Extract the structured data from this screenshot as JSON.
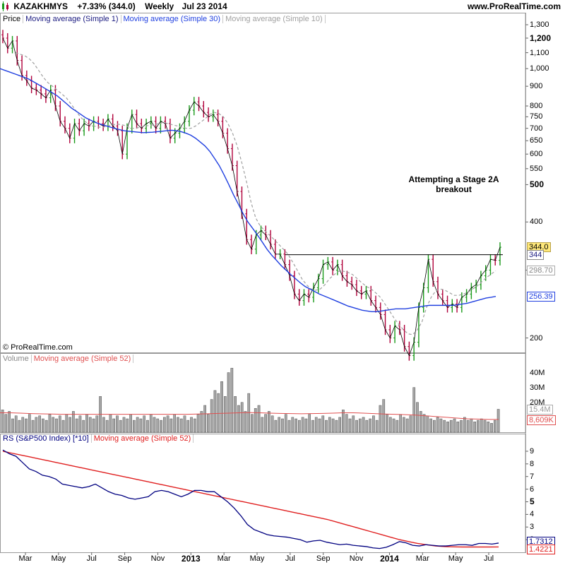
{
  "header": {
    "icon": "candlestick-icon",
    "symbol": "KAZAKHMYS",
    "change": "+7.33% (344.0)",
    "interval": "Weekly",
    "date": "Jul 23 2014",
    "site": "www.ProRealTime.com"
  },
  "colors": {
    "up": "#1a9a1a",
    "down": "#b0003a",
    "ma1": "#000000",
    "ma30": "#2040e0",
    "ma10": "#a0a0a0",
    "resistance": "#000000",
    "rs": "#000080",
    "rs_ma": "#e02020",
    "volume_bar": "#a6a6a6",
    "volume_ma": "#e05050",
    "price_tag": "#ffe87a"
  },
  "price_panel": {
    "legend": [
      "Price",
      "Moving average (Simple 1)",
      "Moving average (Simple 30)",
      "Moving average (Simple 10)"
    ],
    "copyright": "© ProRealTime.com",
    "annotation": [
      "Attempting a Stage 2A",
      "breakout"
    ],
    "y_labels": [
      {
        "text": "1,300",
        "v": 1300,
        "bold": false
      },
      {
        "text": "1,200",
        "v": 1200,
        "bold": true
      },
      {
        "text": "1,100",
        "v": 1100,
        "bold": false
      },
      {
        "text": "1,000",
        "v": 1000,
        "bold": false
      },
      {
        "text": "900",
        "v": 900,
        "bold": false
      },
      {
        "text": "800",
        "v": 800,
        "bold": false
      },
      {
        "text": "750",
        "v": 750,
        "bold": false
      },
      {
        "text": "700",
        "v": 700,
        "bold": false
      },
      {
        "text": "650",
        "v": 650,
        "bold": false
      },
      {
        "text": "600",
        "v": 600,
        "bold": false
      },
      {
        "text": "550",
        "v": 550,
        "bold": false
      },
      {
        "text": "500",
        "v": 500,
        "bold": true
      },
      {
        "text": "400",
        "v": 400,
        "bold": false
      },
      {
        "text": "300",
        "v": 300,
        "bold": false
      },
      {
        "text": "200",
        "v": 200,
        "bold": false
      }
    ],
    "tags": [
      {
        "text": "344.0",
        "v": 344,
        "style": "hl"
      },
      {
        "text": "344",
        "v": 329,
        "style": "plain"
      },
      {
        "text": "298.70",
        "v": 298.7,
        "style": "gray"
      },
      {
        "text": "256.39",
        "v": 256.39,
        "style": "blue"
      }
    ]
  },
  "volume_panel": {
    "legend": [
      "Volume",
      "Moving average (Simple 52)"
    ],
    "y_labels": [
      {
        "text": "40M",
        "v": 40
      },
      {
        "text": "30M",
        "v": 30
      },
      {
        "text": "20M",
        "v": 20
      }
    ],
    "tags": [
      {
        "text": "15.4M",
        "v": 15.4,
        "style": "gray"
      },
      {
        "text": "8,609K",
        "v": 8.6,
        "style": "red"
      }
    ]
  },
  "rs_panel": {
    "legend": [
      "RS (S&P500 Index) [*10]",
      "Moving average (Simple 52)"
    ],
    "y_labels": [
      {
        "text": "9",
        "v": 9,
        "bold": false
      },
      {
        "text": "8",
        "v": 8,
        "bold": false
      },
      {
        "text": "7",
        "v": 7,
        "bold": false
      },
      {
        "text": "6",
        "v": 6,
        "bold": false
      },
      {
        "text": "5",
        "v": 5,
        "bold": true
      },
      {
        "text": "4",
        "v": 4,
        "bold": false
      },
      {
        "text": "3",
        "v": 3,
        "bold": false
      },
      {
        "text": "2",
        "v": 2,
        "bold": false
      }
    ],
    "tags": [
      {
        "text": "1.7312",
        "v": 1.7312,
        "style": "blue"
      },
      {
        "text": "1.4221",
        "v": 1.4221,
        "style": "red"
      }
    ]
  },
  "x_axis": [
    {
      "text": "Mar",
      "bold": false
    },
    {
      "text": "May",
      "bold": false
    },
    {
      "text": "Jul",
      "bold": false
    },
    {
      "text": "Sep",
      "bold": false
    },
    {
      "text": "Nov",
      "bold": false
    },
    {
      "text": "2013",
      "bold": true
    },
    {
      "text": "Mar",
      "bold": false
    },
    {
      "text": "May",
      "bold": false
    },
    {
      "text": "Jul",
      "bold": false
    },
    {
      "text": "Sep",
      "bold": false
    },
    {
      "text": "Nov",
      "bold": false
    },
    {
      "text": "2014",
      "bold": true
    },
    {
      "text": "Mar",
      "bold": false
    },
    {
      "text": "May",
      "bold": false
    },
    {
      "text": "Jul",
      "bold": false
    }
  ],
  "chart_data": [
    {
      "type": "bar",
      "title": "KAZAKHMYS Weekly",
      "scale": "log",
      "ylim": [
        185,
        1300
      ],
      "series": [
        {
          "name": "Price",
          "kind": "ohlc",
          "values": [
            1200,
            1130,
            1180,
            1050,
            960,
            930,
            890,
            880,
            860,
            840,
            880,
            800,
            730,
            700,
            660,
            720,
            690,
            720,
            710,
            730,
            720,
            710,
            740,
            710,
            690,
            600,
            700,
            760,
            720,
            700,
            720,
            730,
            700,
            730,
            720,
            660,
            680,
            700,
            730,
            780,
            820,
            800,
            770,
            750,
            760,
            730,
            680,
            620,
            560,
            480,
            420,
            360,
            340,
            370,
            380,
            370,
            350,
            330,
            330,
            310,
            290,
            260,
            250,
            260,
            255,
            270,
            285,
            310,
            315,
            300,
            310,
            290,
            280,
            275,
            265,
            260,
            265,
            250,
            240,
            230,
            210,
            200,
            215,
            210,
            190,
            180,
            195,
            240,
            270,
            320,
            280,
            260,
            250,
            240,
            245,
            240,
            255,
            260,
            270,
            275,
            290,
            300,
            320,
            318,
            344
          ]
        },
        {
          "name": "Moving average (Simple 30)",
          "kind": "line",
          "values": [
            1000,
            990,
            980,
            970,
            960,
            950,
            940,
            925,
            910,
            895,
            880,
            865,
            850,
            830,
            810,
            790,
            775,
            760,
            745,
            735,
            725,
            718,
            712,
            706,
            700,
            695,
            690,
            688,
            686,
            684,
            682,
            683,
            684,
            686,
            688,
            690,
            692,
            690,
            686,
            680,
            672,
            660,
            645,
            630,
            610,
            585,
            560,
            530,
            500,
            470,
            445,
            420,
            400,
            385,
            370,
            355,
            340,
            328,
            318,
            308,
            300,
            292,
            285,
            278,
            272,
            268,
            264,
            260,
            257,
            254,
            251,
            248,
            245,
            242,
            240,
            238,
            236,
            235,
            234,
            234,
            235,
            236,
            237,
            238,
            238,
            238,
            239,
            240,
            241,
            242,
            243,
            243,
            243,
            243,
            243,
            243,
            244,
            245,
            246,
            248,
            250,
            252,
            254,
            255,
            256.39
          ]
        },
        {
          "name": "Moving average (Simple 10)",
          "kind": "line",
          "values": [
            1100,
            1090,
            1080,
            1060,
            1030,
            990,
            950,
            920,
            900,
            880,
            860,
            840,
            810,
            780,
            750,
            730,
            715,
            710,
            705,
            705,
            710,
            715,
            718,
            715,
            710,
            700,
            700,
            705,
            710,
            712,
            715,
            720,
            725,
            720,
            715,
            710,
            705,
            700,
            700,
            710,
            725,
            740,
            760,
            770,
            765,
            750,
            720,
            680,
            630,
            570,
            510,
            450,
            410,
            390,
            380,
            370,
            360,
            350,
            340,
            330,
            315,
            300,
            285,
            275,
            268,
            266,
            268,
            275,
            285,
            292,
            298,
            298,
            296,
            292,
            285,
            278,
            272,
            268,
            262,
            255,
            245,
            235,
            225,
            217,
            210,
            205,
            204,
            210,
            220,
            240,
            255,
            265,
            268,
            266,
            262,
            258,
            258,
            260,
            263,
            268,
            273,
            280,
            287,
            293,
            298.7
          ]
        }
      ]
    },
    {
      "type": "bar",
      "title": "Volume",
      "ylim": [
        0,
        45
      ],
      "series": [
        {
          "name": "Volume",
          "values": [
            15,
            12,
            14,
            9,
            11,
            8,
            10,
            9,
            12,
            8,
            10,
            11,
            9,
            8,
            12,
            10,
            9,
            11,
            8,
            12,
            10,
            14,
            9,
            11,
            8,
            12,
            10,
            9,
            11,
            24,
            10,
            8,
            12,
            9,
            11,
            8,
            10,
            9,
            12,
            8,
            10,
            9,
            11,
            8,
            12,
            10,
            9,
            8,
            10,
            11,
            9,
            12,
            10,
            9,
            11,
            8,
            10,
            9,
            12,
            14,
            18,
            12,
            22,
            28,
            26,
            34,
            24,
            40,
            43,
            24,
            18,
            20,
            14,
            26,
            12,
            16,
            18,
            10,
            12,
            14,
            11,
            8,
            10,
            9,
            12,
            8,
            10,
            9,
            8,
            10,
            9,
            12,
            8,
            10,
            9,
            11,
            8,
            10,
            9,
            8,
            10,
            15,
            12,
            9,
            11,
            8,
            9,
            10,
            8,
            9,
            11,
            8,
            18,
            22,
            12,
            10,
            9,
            8,
            12,
            10,
            9,
            11,
            30,
            20,
            14,
            12,
            11,
            9,
            8,
            10,
            9,
            8,
            7,
            8,
            9,
            7,
            8,
            10,
            8,
            9,
            7,
            8,
            9,
            8,
            7,
            6,
            8,
            15.4
          ]
        },
        {
          "name": "Moving average (Simple 52)",
          "values": [
            13,
            13,
            12.8,
            12.5,
            12.3,
            12.2,
            12,
            12,
            12,
            12,
            12,
            12,
            12,
            12,
            12,
            12,
            12,
            12,
            12,
            12.2,
            12.4,
            12.6,
            12.8,
            13,
            13.2,
            13,
            12.8,
            12.6,
            12.5,
            12.4,
            12.5,
            12.6,
            12.8,
            13,
            13,
            12.8,
            12.5,
            12.2,
            12,
            11.8,
            11.5,
            11,
            10.5,
            10,
            9.5,
            9,
            8.8,
            8.6,
            8.609
          ]
        }
      ]
    },
    {
      "type": "line",
      "title": "RS (S&P500 Index) [*10]",
      "ylim": [
        1,
        9.5
      ],
      "series": [
        {
          "name": "RS (S&P500 Index) [*10]",
          "values": [
            9.1,
            8.8,
            8.6,
            8.1,
            7.6,
            7.4,
            7.1,
            7,
            6.8,
            6.4,
            6.3,
            6.2,
            6.1,
            6.2,
            6.4,
            6.1,
            5.8,
            5.6,
            5.5,
            5.3,
            5.2,
            5.3,
            5.4,
            5.8,
            5.9,
            5.8,
            5.6,
            5.4,
            5.6,
            5.9,
            5.9,
            5.8,
            5.8,
            5.4,
            5,
            4.5,
            3.9,
            3.2,
            2.8,
            2.6,
            2.4,
            2.3,
            2.25,
            2.2,
            2.1,
            2,
            1.8,
            1.9,
            1.95,
            1.8,
            1.7,
            1.6,
            1.65,
            1.55,
            1.5,
            1.45,
            1.35,
            1.3,
            1.4,
            1.6,
            1.85,
            1.75,
            1.55,
            1.5,
            1.6,
            1.55,
            1.5,
            1.5,
            1.55,
            1.6,
            1.6,
            1.55,
            1.7,
            1.7,
            1.65,
            1.7312
          ]
        },
        {
          "name": "Moving average (Simple 52)",
          "values": [
            9,
            8.85,
            8.7,
            8.55,
            8.4,
            8.25,
            8.1,
            7.95,
            7.8,
            7.65,
            7.5,
            7.35,
            7.2,
            7.05,
            6.9,
            6.75,
            6.6,
            6.45,
            6.3,
            6.15,
            6,
            5.85,
            5.7,
            5.55,
            5.4,
            5.25,
            5.1,
            4.95,
            4.8,
            4.65,
            4.5,
            4.35,
            4.2,
            4.05,
            3.9,
            3.75,
            3.6,
            3.4,
            3.2,
            3,
            2.8,
            2.6,
            2.4,
            2.2,
            2,
            1.85,
            1.7,
            1.6,
            1.5,
            1.45,
            1.43,
            1.42,
            1.42,
            1.42,
            1.42,
            1.4221
          ]
        }
      ]
    }
  ]
}
